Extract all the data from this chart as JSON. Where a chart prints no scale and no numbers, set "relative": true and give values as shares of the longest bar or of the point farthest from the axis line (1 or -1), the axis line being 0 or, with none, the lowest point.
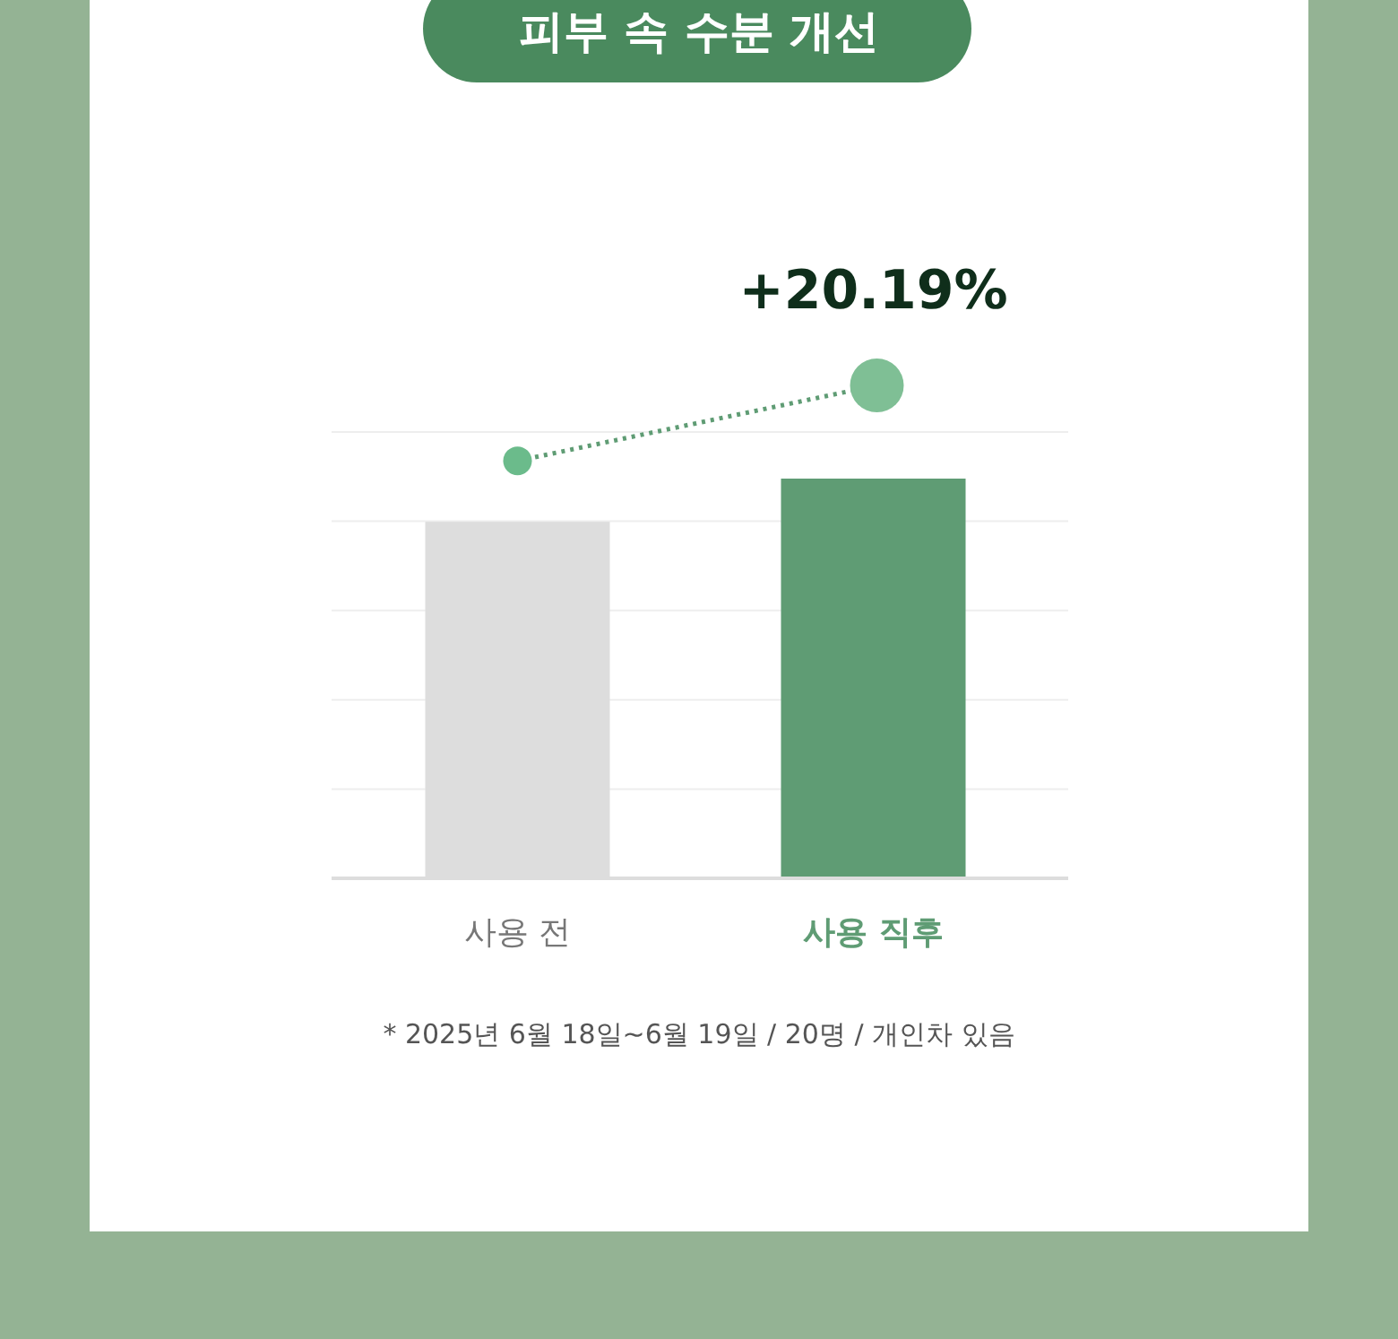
{
  "chart_data": {
    "type": "bar",
    "title": "피부 속 수분 개선",
    "categories": [
      "사용 전",
      "사용 직후"
    ],
    "values": [
      0.892,
      1
    ],
    "colors": [
      "#dddddd",
      "#5f9c74"
    ],
    "relative": true,
    "grid": "y",
    "annotations": [
      "+20.19%",
      "* 2025년 6월 18일~6월 19일 / 20명 / 개인차 있음"
    ]
  }
}
